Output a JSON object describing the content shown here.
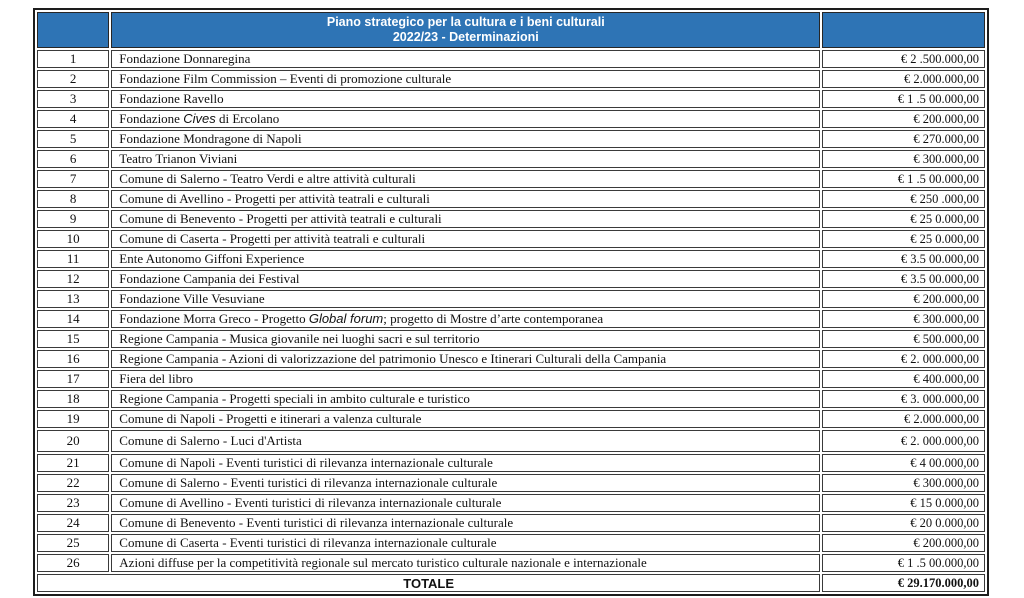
{
  "header": {
    "title_line1": "Piano strategico per la cultura e i beni culturali",
    "title_line2": "2022/23 - Determinazioni",
    "bg_color": "#2e74b5",
    "text_color": "#ffffff"
  },
  "rows": [
    {
      "num": "1",
      "desc": [
        {
          "t": "Fondazione Donnaregina"
        }
      ],
      "amount": "€ 2 .500.000,00"
    },
    {
      "num": "2",
      "desc": [
        {
          "t": "Fondazione Film Commission – Eventi di promozione culturale"
        }
      ],
      "amount": "€ 2.000.000,00"
    },
    {
      "num": "3",
      "desc": [
        {
          "t": "Fondazione Ravello"
        }
      ],
      "amount": "€ 1 .5 00.000,00"
    },
    {
      "num": "4",
      "desc": [
        {
          "t": "Fondazione "
        },
        {
          "t": "Cives",
          "italic": true
        },
        {
          "t": " di Ercolano"
        }
      ],
      "amount": "€ 200.000,00"
    },
    {
      "num": "5",
      "desc": [
        {
          "t": "Fondazione Mondragone di Napoli"
        }
      ],
      "amount": "€ 270.000,00"
    },
    {
      "num": "6",
      "desc": [
        {
          "t": "Teatro Trianon Viviani"
        }
      ],
      "amount": "€ 300.000,00"
    },
    {
      "num": "7",
      "desc": [
        {
          "t": "Comune di Salerno - Teatro Verdi e altre attività culturali"
        }
      ],
      "amount": "€ 1 .5 00.000,00"
    },
    {
      "num": "8",
      "desc": [
        {
          "t": "Comune di Avellino - Progetti  per  attività  teatrali e culturali"
        }
      ],
      "amount": "€ 250 .000,00"
    },
    {
      "num": "9",
      "desc": [
        {
          "t": "Comune di Benevento - Progetti  per  attività  teatrali e culturali"
        }
      ],
      "amount": "€ 25 0.000,00"
    },
    {
      "num": "10",
      "desc": [
        {
          "t": "Comune di Caserta - Progetti  per  attività  teatrali e culturali"
        }
      ],
      "amount": "€ 25 0.000,00"
    },
    {
      "num": "11",
      "desc": [
        {
          "t": "Ente Autonomo Giffoni Experience"
        }
      ],
      "amount": "€ 3.5 00.000,00"
    },
    {
      "num": "12",
      "desc": [
        {
          "t": "Fondazione Campania dei Festival"
        }
      ],
      "amount": "€ 3.5 00.000,00"
    },
    {
      "num": "13",
      "desc": [
        {
          "t": "Fondazione Ville Vesuviane"
        }
      ],
      "amount": "€ 200.000,00"
    },
    {
      "num": "14",
      "desc": [
        {
          "t": "Fondazione Morra Greco - Progetto "
        },
        {
          "t": "Global forum",
          "italic": true
        },
        {
          "t": "; progetto di Mostre d’arte contemporanea"
        }
      ],
      "amount": "€ 300.000,00"
    },
    {
      "num": "15",
      "desc": [
        {
          "t": "Regione Campania - Musica giovanile nei luoghi sacri e sul territorio"
        }
      ],
      "amount": "€ 500.000,00"
    },
    {
      "num": "16",
      "desc": [
        {
          "t": "Regione Campania - Azioni di valorizzazione del patrimonio Unesco e Itinerari Culturali della Campania"
        }
      ],
      "amount": "€ 2. 000.000,00"
    },
    {
      "num": "17",
      "desc": [
        {
          "t": "Fiera del libro"
        }
      ],
      "amount": "€ 400.000,00"
    },
    {
      "num": "18",
      "desc": [
        {
          "t": "Regione Campania - Progetti speciali in ambito culturale e turistico"
        }
      ],
      "amount": "€ 3. 000.000,00"
    },
    {
      "num": "19",
      "desc": [
        {
          "t": "Comune di Napoli - Progetti e itinerari a valenza culturale"
        }
      ],
      "amount": "€ 2.000.000,00"
    },
    {
      "num": "20",
      "desc": [
        {
          "t": "Comune di Salerno - Luci d'Artista"
        }
      ],
      "amount": "€ 2. 000.000,00",
      "tall": true
    },
    {
      "num": "21",
      "desc": [
        {
          "t": "Comune di Napoli - Eventi turistici di rilevanza internazionale culturale"
        }
      ],
      "amount": "€ 4 00.000,00"
    },
    {
      "num": "22",
      "desc": [
        {
          "t": "Comune di Salerno - Eventi turistici di rilevanza internazionale culturale"
        }
      ],
      "amount": "€ 300.000,00"
    },
    {
      "num": "23",
      "desc": [
        {
          "t": "Comune di Avellino - Eventi turistici di rilevanza internazionale culturale"
        }
      ],
      "amount": "€ 15 0.000,00"
    },
    {
      "num": "24",
      "desc": [
        {
          "t": "Comune di Benevento - Eventi turistici di rilevanza internazionale culturale"
        }
      ],
      "amount": "€ 20 0.000,00"
    },
    {
      "num": "25",
      "desc": [
        {
          "t": "Comune di Caserta - Eventi turistici di rilevanza internazionale culturale"
        }
      ],
      "amount": "€ 200.000,00"
    },
    {
      "num": "26",
      "desc": [
        {
          "t": "Azioni diffuse per la competitività regionale sul mercato turistico culturale nazionale e internazionale"
        }
      ],
      "amount": "€ 1 .5 00.000,00"
    }
  ],
  "footer": {
    "label": "TOTALE",
    "amount": "€ 29.170.000,00"
  }
}
